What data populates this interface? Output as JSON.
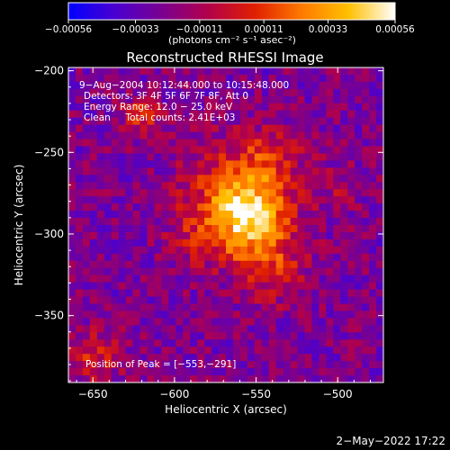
{
  "chart_data": {
    "type": "heatmap",
    "title": "Reconstructed RHESSI Image",
    "xlabel": "Heliocentric X (arcsec)",
    "ylabel": "Heliocentric Y (arcsec)",
    "xlim": [
      -665,
      -472
    ],
    "ylim": [
      -391,
      -198
    ],
    "x_ticks": [
      -650,
      -600,
      -550,
      -500
    ],
    "y_ticks": [
      -200,
      -250,
      -300,
      -350
    ],
    "x_tick_labels": [
      "−650",
      "−600",
      "−550",
      "−500"
    ],
    "y_tick_labels": [
      "−200",
      "−250",
      "−300",
      "−350"
    ],
    "colorbar": {
      "range": [
        -0.00056,
        0.00056
      ],
      "tick_values": [
        -0.00056,
        -0.00033,
        -0.00011,
        0.00011,
        0.00033,
        0.00056
      ],
      "tick_labels": [
        "−0.00056",
        "−0.00033",
        "−0.00011",
        "0.00011",
        "0.00033",
        "0.00056"
      ],
      "unit_label": "(photons cm⁻² s⁻¹ asec⁻²)",
      "colormap": [
        "#0000ff",
        "#4a00d0",
        "#7a0090",
        "#b3004a",
        "#e02000",
        "#ff7a00",
        "#ffc000",
        "#ffffff"
      ]
    },
    "annotations": [
      "9−Aug−2004 10:12:44.000 to 10:15:48.000",
      "Detectors: 3F 4F 5F 6F 7F 8F, Att 0",
      "Energy Range: 12.0 − 25.0 keV",
      "Clean     Total counts: 2.41E+03"
    ],
    "peak": {
      "label": "Position of Peak = [−553,−291]",
      "x": -553,
      "y": -291
    },
    "sources": [
      {
        "x": -553,
        "y": -291,
        "amplitude": 0.00056,
        "sigma": 16
      },
      {
        "x": -565,
        "y": -270,
        "amplitude": 0.00032,
        "sigma": 20
      },
      {
        "x": -540,
        "y": -255,
        "amplitude": 0.00022,
        "sigma": 14
      },
      {
        "x": -540,
        "y": -320,
        "amplitude": 0.00024,
        "sigma": 16
      },
      {
        "x": -585,
        "y": -300,
        "amplitude": 0.0002,
        "sigma": 14
      },
      {
        "x": -620,
        "y": -228,
        "amplitude": 0.00028,
        "sigma": 9
      },
      {
        "x": -650,
        "y": -375,
        "amplitude": 0.00024,
        "sigma": 12
      },
      {
        "x": -500,
        "y": -272,
        "amplitude": 0.00012,
        "sigma": 12
      }
    ],
    "background_level": -0.00024,
    "grid": false
  },
  "timestamp": "2−May−2022 17:22"
}
